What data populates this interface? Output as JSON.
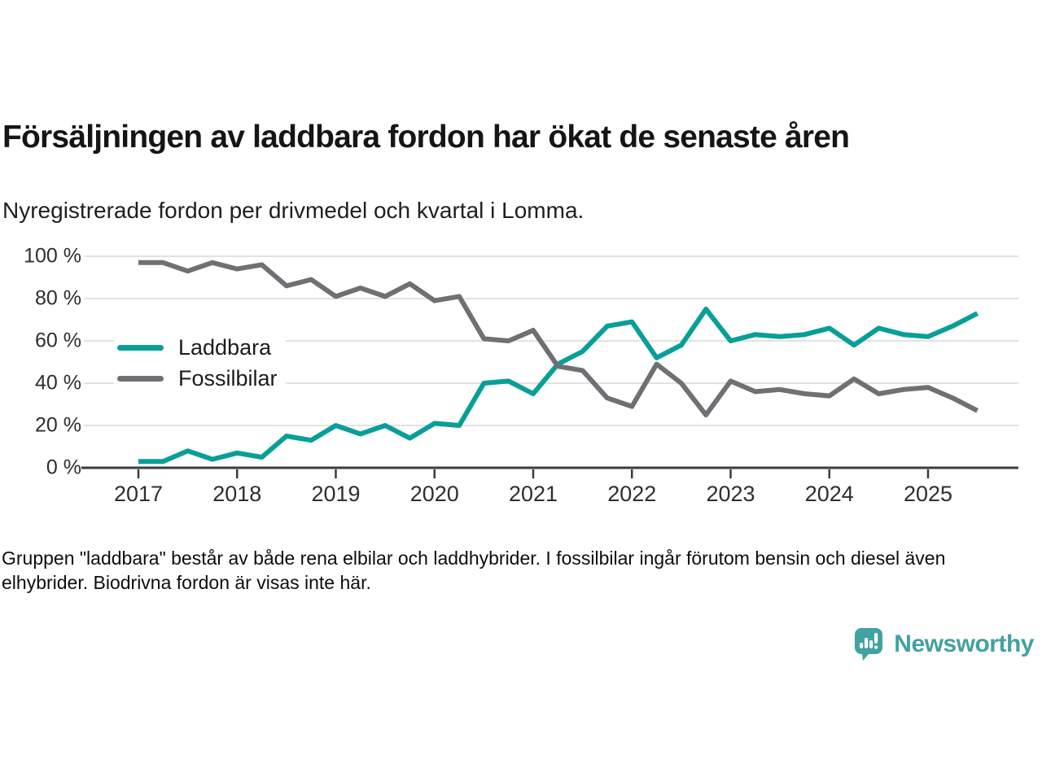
{
  "header": {
    "title": "Försäljningen av laddbara fordon har ökat de senaste åren",
    "subtitle": "Nyregistrerade fordon per drivmedel och kvartal i Lomma."
  },
  "colors": {
    "accent_teal": "#089f97",
    "line_gray": "#6f6f74",
    "gridline": "#e2e2e2",
    "axis": "#3b3b3b",
    "logo_teal": "#42a1a2"
  },
  "chart_data": {
    "type": "line",
    "title": "Försäljningen av laddbara fordon har ökat de senaste åren",
    "subtitle": "Nyregistrerade fordon per drivmedel och kvartal i Lomma.",
    "xlabel": "",
    "ylabel": "",
    "ylim": [
      0,
      100
    ],
    "grid": true,
    "legend_position": "inside-left",
    "x_unit": "quarter",
    "categories": [
      "2017-Q1",
      "2017-Q2",
      "2017-Q3",
      "2017-Q4",
      "2018-Q1",
      "2018-Q2",
      "2018-Q3",
      "2018-Q4",
      "2019-Q1",
      "2019-Q2",
      "2019-Q3",
      "2019-Q4",
      "2020-Q1",
      "2020-Q2",
      "2020-Q3",
      "2020-Q4",
      "2021-Q1",
      "2021-Q2",
      "2021-Q3",
      "2021-Q4",
      "2022-Q1",
      "2022-Q2",
      "2022-Q3",
      "2022-Q4",
      "2023-Q1",
      "2023-Q2",
      "2023-Q3",
      "2023-Q4",
      "2024-Q1",
      "2024-Q2",
      "2024-Q3",
      "2024-Q4",
      "2025-Q1",
      "2025-Q2",
      "2025-Q3"
    ],
    "series": [
      {
        "name": "Laddbara",
        "color": "#089f97",
        "values": [
          3,
          3,
          8,
          4,
          7,
          5,
          15,
          13,
          20,
          16,
          20,
          14,
          21,
          20,
          40,
          41,
          35,
          49,
          55,
          67,
          69,
          52,
          58,
          75,
          60,
          63,
          62,
          63,
          66,
          58,
          66,
          63,
          62,
          67,
          73
        ]
      },
      {
        "name": "Fossilbilar",
        "color": "#6f6f74",
        "values": [
          97,
          97,
          93,
          97,
          94,
          96,
          86,
          89,
          81,
          85,
          81,
          87,
          79,
          81,
          61,
          60,
          65,
          48,
          46,
          33,
          29,
          49,
          40,
          25,
          41,
          36,
          37,
          35,
          34,
          42,
          35,
          37,
          38,
          33,
          27
        ]
      }
    ],
    "ytick_values": [
      0,
      20,
      40,
      60,
      80,
      100
    ],
    "ytick_labels": [
      "0 %",
      "20 %",
      "40 %",
      "60 %",
      "80 %",
      "100 %"
    ],
    "xtick_labels": [
      "2017",
      "2018",
      "2019",
      "2020",
      "2021",
      "2022",
      "2023",
      "2024",
      "2025"
    ],
    "xtick_positions": [
      0,
      4,
      8,
      12,
      16,
      20,
      24,
      28,
      32
    ]
  },
  "legend": {
    "items": [
      {
        "label": "Laddbara"
      },
      {
        "label": "Fossilbilar"
      }
    ]
  },
  "footer": {
    "note": "Gruppen \"laddbara\" består av både rena elbilar och laddhybrider. I fossilbilar ingår förutom bensin och diesel även elhybrider. Biodrivna fordon är visas inte här."
  },
  "logo": {
    "text": "Newsworthy"
  }
}
